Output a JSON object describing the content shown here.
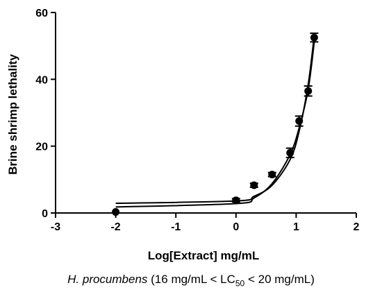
{
  "chart_data": {
    "type": "scatter",
    "xlabel": "Log[Extract] mg/mL",
    "ylabel": "Brine shrimp lethality",
    "xlim": [
      -3,
      2
    ],
    "ylim": [
      0,
      60
    ],
    "x_ticks": [
      "-3",
      "-2",
      "-1",
      "0",
      "1",
      "2"
    ],
    "y_ticks": [
      "0",
      "20",
      "40",
      "60"
    ],
    "grid": false,
    "series": [
      {
        "marker": "circle",
        "x": [
          -2.0,
          0.0,
          0.3,
          0.6,
          0.9,
          1.05,
          1.2,
          1.3
        ],
        "y": [
          0.3,
          3.8,
          8.3,
          11.5,
          18.0,
          27.5,
          36.5,
          52.5
        ],
        "error": [
          0,
          0.5,
          0.6,
          0.6,
          1.4,
          1.5,
          1.5,
          1.3
        ]
      }
    ],
    "fit_curves": [
      {
        "x": [
          -2.0,
          0.0,
          0.3,
          0.6,
          0.9,
          1.05,
          1.2,
          1.3
        ],
        "y": [
          2.9,
          3.6,
          5.0,
          8.3,
          16.0,
          24.5,
          38.5,
          53.0
        ]
      },
      {
        "x": [
          -2.0,
          0.0,
          0.3,
          0.6,
          0.9,
          1.05,
          1.2,
          1.3
        ],
        "y": [
          1.8,
          2.8,
          4.5,
          8.8,
          17.5,
          25.5,
          37.0,
          51.0
        ]
      }
    ],
    "caption": {
      "species": "H. procumbens",
      "pre": " (16 mg/mL < LC",
      "sub": "50",
      "post": " < 20 mg/mL)"
    }
  }
}
